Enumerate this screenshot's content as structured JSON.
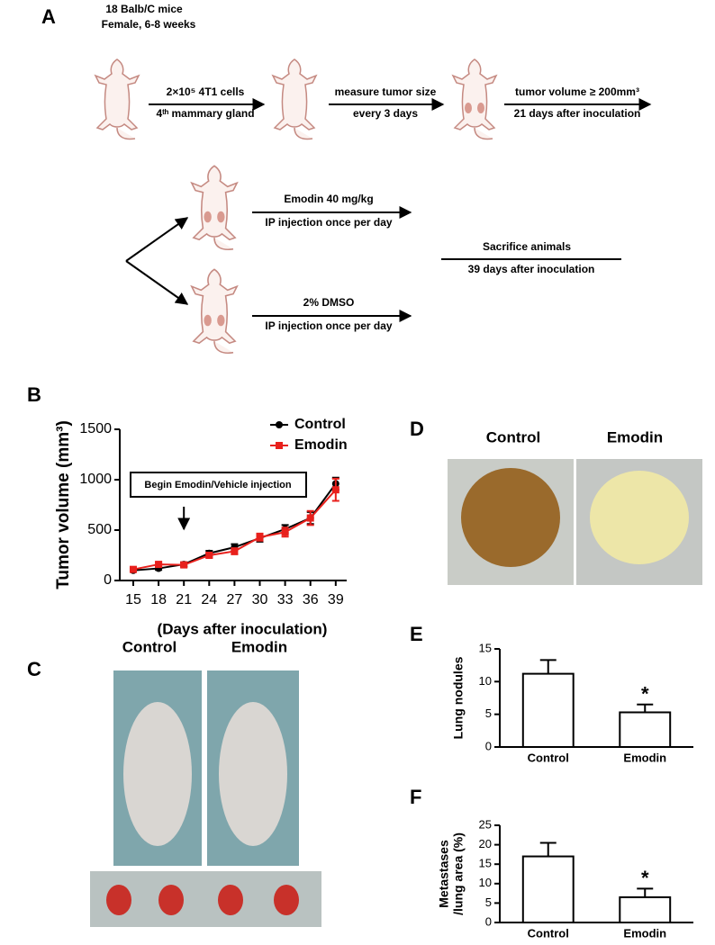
{
  "panel_labels": [
    "A",
    "B",
    "C",
    "D",
    "E",
    "F"
  ],
  "diagram": {
    "mice": [
      "18 Balb/C mice",
      "Female, 6-8 weeks"
    ],
    "step1": [
      "2×10⁵ 4T1 cells",
      "4ᵗʰ mammary gland"
    ],
    "step2": [
      "measure tumor size",
      "every 3 days"
    ],
    "step3": [
      "tumor volume ≥ 200mm³",
      "21 days after inoculation"
    ],
    "emodin": [
      "Emodin 40 mg/kg",
      "IP injection once per day"
    ],
    "dmso": [
      "2% DMSO",
      "IP injection once per day"
    ],
    "sacrifice": [
      "Sacrifice animals",
      "39 days after inoculation"
    ]
  },
  "photo_c": [
    "Control",
    "Emodin"
  ],
  "photo_d": [
    "Control",
    "Emodin"
  ],
  "chart_data": [
    {
      "type": "line",
      "x": [
        15,
        18,
        21,
        24,
        27,
        30,
        33,
        36,
        39
      ],
      "xlim": [
        13.4,
        40.3
      ],
      "xticks": [
        15,
        18,
        21,
        24,
        27,
        30,
        33,
        36,
        39
      ],
      "ylim": [
        0,
        1500
      ],
      "yticks": [
        0,
        500,
        1000,
        1500
      ],
      "ylabel": "Tumor volume (mm³)",
      "xlabel": "(Days after inoculation)",
      "annotation": "Begin Emodin/Vehicle injection",
      "annotation_x": 21,
      "series": [
        {
          "name": "Control",
          "color": "#000000",
          "marker": "circle",
          "values": [
            100,
            120,
            160,
            270,
            330,
            420,
            510,
            620,
            960
          ],
          "errors": [
            15,
            15,
            20,
            25,
            30,
            35,
            40,
            60,
            60
          ]
        },
        {
          "name": "Emodin",
          "color": "#e8201c",
          "marker": "square",
          "values": [
            110,
            160,
            155,
            250,
            290,
            430,
            480,
            620,
            900
          ],
          "errors": [
            15,
            20,
            20,
            25,
            30,
            35,
            45,
            70,
            110
          ]
        }
      ]
    },
    {
      "type": "bar",
      "categories": [
        "Control",
        "Emodin"
      ],
      "values": [
        11.2,
        5.3
      ],
      "errors": [
        2.1,
        1.2
      ],
      "significance": [
        null,
        "*"
      ],
      "color": "#ffffff",
      "ylim": [
        0,
        15
      ],
      "yticks": [
        0,
        5,
        10,
        15
      ],
      "ylabel": [
        "Lung nodules"
      ]
    },
    {
      "type": "bar",
      "categories": [
        "Control",
        "Emodin"
      ],
      "values": [
        17,
        6.5
      ],
      "errors": [
        3.5,
        2.2
      ],
      "significance": [
        null,
        "*"
      ],
      "color": "#ffffff",
      "ylim": [
        0,
        25
      ],
      "yticks": [
        0,
        5,
        10,
        15,
        20,
        25
      ],
      "ylabel": [
        "Metastases",
        "/lung area (%)"
      ]
    }
  ]
}
